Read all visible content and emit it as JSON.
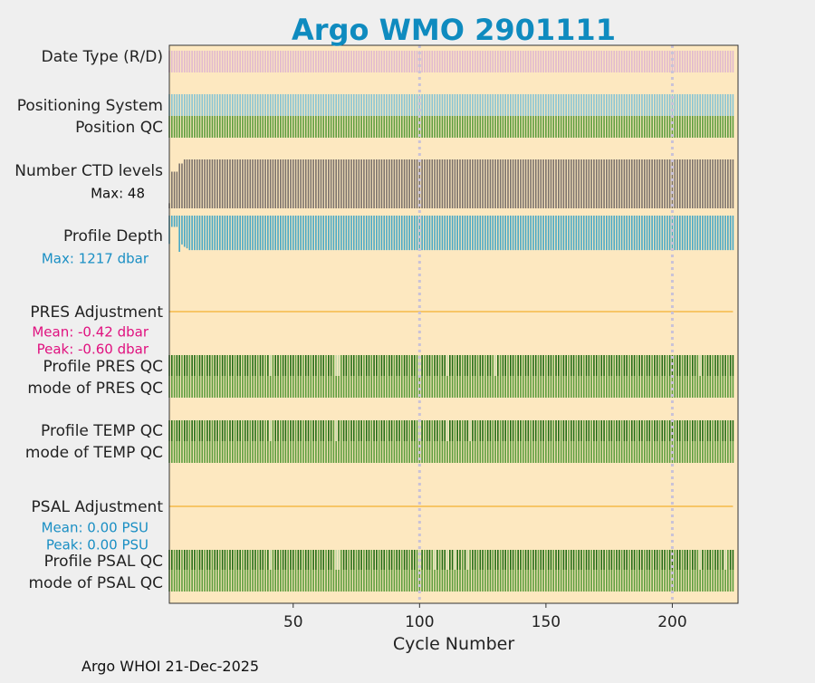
{
  "colors": {
    "figure_bg": "#efefef",
    "plot_bg": "#fde8c0",
    "title": "#0f8bbf",
    "date_type": "#e0b8cf",
    "positioning": "#86c4d4",
    "position_qc": "#5a9c3c",
    "ctd_levels": "#7a716b",
    "profile_depth": "#47a8c6",
    "adjustment_line": "#f5b949",
    "qc_dark": "#1f6b12",
    "qc_medium": "#5a9c3c",
    "qc_light": "#c3d9a8",
    "pres_stats": "#e0117f",
    "psal_stats": "#1a8fc4",
    "gridline": "#c9c2d8"
  },
  "chart_data": {
    "type": "bar",
    "title": "Argo WMO 2901111",
    "xlabel": "Cycle Number",
    "xlim": [
      1,
      226
    ],
    "xticks": [
      50,
      100,
      150,
      200
    ],
    "grid": {
      "vertical_dotted_at": [
        100,
        200
      ]
    },
    "cycles": {
      "first": 1,
      "last": 224
    },
    "rows": [
      {
        "id": "date_type",
        "label": "Date Type (R/D)",
        "kind": "stripe",
        "color_key": "date_type"
      },
      {
        "id": "positioning_system",
        "label": "Positioning System",
        "kind": "stripe",
        "color_key": "positioning"
      },
      {
        "id": "position_qc",
        "label": "Position QC",
        "kind": "stripe",
        "color_key": "position_qc"
      },
      {
        "id": "ctd_levels",
        "label": "Number CTD levels",
        "kind": "levels",
        "color_key": "ctd_levels",
        "annotation": "Max: 48",
        "max": 48,
        "early_values": [
          {
            "cycle": 1,
            "value": 5
          },
          {
            "cycle": 2,
            "value": 36
          },
          {
            "cycle": 3,
            "value": 36
          },
          {
            "cycle": 4,
            "value": 36
          },
          {
            "cycle": 5,
            "value": 44
          },
          {
            "cycle": 6,
            "value": 44
          }
        ],
        "typical_value": 48
      },
      {
        "id": "profile_depth",
        "label": "Profile Depth",
        "kind": "depth",
        "color_key": "profile_depth",
        "annotation": "Max: 1217 dbar",
        "max": 1217,
        "early_values": [
          {
            "cycle": 1,
            "value": 950
          },
          {
            "cycle": 2,
            "value": 380
          },
          {
            "cycle": 3,
            "value": 380
          },
          {
            "cycle": 4,
            "value": 380
          },
          {
            "cycle": 5,
            "value": 1217
          },
          {
            "cycle": 6,
            "value": 970
          },
          {
            "cycle": 7,
            "value": 1050
          },
          {
            "cycle": 8,
            "value": 1100
          }
        ],
        "typical_value": 1160
      },
      {
        "id": "pres_adjustment",
        "label": "PRES Adjustment",
        "kind": "line",
        "color_key": "adjustment_line",
        "stats": [
          "Mean: -0.42 dbar",
          "Peak: -0.60 dbar"
        ],
        "stats_color_key": "pres_stats"
      },
      {
        "id": "profile_pres_qc",
        "label": "Profile PRES QC",
        "kind": "qc",
        "light_cycles": [
          41,
          67,
          68,
          100,
          111,
          130,
          211
        ]
      },
      {
        "id": "mode_pres_qc",
        "label": "mode of PRES QC",
        "kind": "stripe",
        "color_key": "position_qc"
      },
      {
        "id": "profile_temp_qc",
        "label": "Profile TEMP QC",
        "kind": "qc",
        "light_cycles": [
          41,
          67,
          100,
          111,
          120
        ]
      },
      {
        "id": "mode_temp_qc",
        "label": "mode of TEMP QC",
        "kind": "stripe",
        "color_key": "position_qc"
      },
      {
        "id": "psal_adjustment",
        "label": "PSAL Adjustment",
        "kind": "line",
        "color_key": "adjustment_line",
        "stats": [
          "Mean: 0.00 PSU",
          "Peak: 0.00 PSU"
        ],
        "stats_color_key": "psal_stats"
      },
      {
        "id": "profile_psal_qc",
        "label": "Profile PSAL QC",
        "kind": "qc",
        "light_cycles": [
          41,
          67,
          68,
          100,
          106,
          111,
          114,
          119,
          211,
          221
        ]
      },
      {
        "id": "mode_psal_qc",
        "label": "mode of PSAL QC",
        "kind": "stripe",
        "color_key": "position_qc"
      }
    ]
  },
  "footer": {
    "text": "Argo WHOI 21-Dec-2025"
  }
}
